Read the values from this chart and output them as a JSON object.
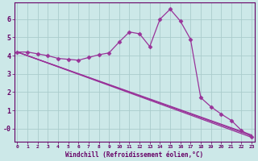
{
  "background_color": "#cce8e8",
  "line_color": "#993399",
  "marker_color": "#993399",
  "grid_color": "#aacccc",
  "xlabel": "Windchill (Refroidissement éolien,°C)",
  "xlabel_color": "#660066",
  "tick_color": "#660066",
  "axis_line_color": "#660066",
  "ylim": [
    -0.7,
    6.9
  ],
  "xlim": [
    -0.3,
    23.3
  ],
  "yticks": [
    0,
    1,
    2,
    3,
    4,
    5,
    6
  ],
  "ytick_labels": [
    "-0",
    "1",
    "2",
    "3",
    "4",
    "5",
    "6"
  ],
  "xticks": [
    0,
    1,
    2,
    3,
    4,
    5,
    6,
    7,
    8,
    9,
    10,
    11,
    12,
    13,
    14,
    15,
    16,
    17,
    18,
    19,
    20,
    21,
    22,
    23
  ],
  "main_x": [
    0,
    1,
    2,
    3,
    4,
    5,
    6,
    7,
    8,
    9,
    10,
    11,
    12,
    13,
    14,
    15,
    16,
    17,
    18,
    19,
    20,
    21,
    22,
    23
  ],
  "main_y": [
    4.2,
    4.2,
    4.1,
    4.0,
    3.85,
    3.8,
    3.75,
    3.9,
    4.05,
    4.15,
    4.75,
    5.3,
    5.2,
    4.5,
    6.0,
    6.55,
    5.9,
    4.9,
    1.7,
    1.2,
    0.8,
    0.45,
    -0.1,
    -0.45
  ],
  "fan_lines": [
    {
      "x": [
        0,
        23
      ],
      "y": [
        4.2,
        -0.35
      ]
    },
    {
      "x": [
        0,
        23
      ],
      "y": [
        4.2,
        -0.4
      ]
    },
    {
      "x": [
        0,
        23
      ],
      "y": [
        4.2,
        -0.48
      ]
    }
  ]
}
